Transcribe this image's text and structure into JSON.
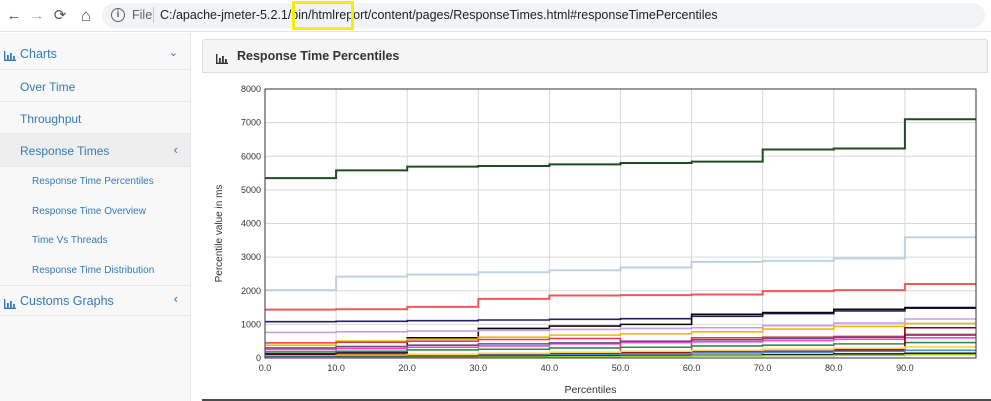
{
  "browser": {
    "back_icon": "←",
    "forward_icon": "→",
    "reload_icon": "⟳",
    "home_icon": "⌂",
    "file_label": "File",
    "url": "C:/apache-jmeter-5.2.1/bin/htmlreport/content/pages/ResponseTimes.html#responseTimePercentiles"
  },
  "sidebar": {
    "charts_label": "Charts",
    "items": [
      {
        "label": "Over Time"
      },
      {
        "label": "Throughput"
      },
      {
        "label": "Response Times"
      }
    ],
    "sub_items": [
      {
        "label": "Response Time Percentiles"
      },
      {
        "label": "Response Time Overview"
      },
      {
        "label": "Time Vs Threads"
      },
      {
        "label": "Response Time Distribution"
      }
    ],
    "custom_graphs_label": "Customs Graphs"
  },
  "panel": {
    "title": "Response Time Percentiles"
  },
  "chart_data": {
    "type": "line",
    "step": true,
    "xlabel": "Percentiles",
    "ylabel": "Percentile value in ms",
    "xlim": [
      0,
      100
    ],
    "ylim": [
      0,
      8000
    ],
    "x_ticks": [
      "0.0",
      "10.0",
      "20.0",
      "30.0",
      "40.0",
      "50.0",
      "60.0",
      "70.0",
      "80.0",
      "90.0"
    ],
    "y_ticks": [
      "0",
      "1000",
      "2000",
      "3000",
      "4000",
      "5000",
      "6000",
      "7000",
      "8000"
    ],
    "grid": true,
    "x": [
      0,
      10,
      20,
      30,
      40,
      50,
      60,
      70,
      80,
      90,
      100
    ],
    "series": [
      {
        "color": "#1e4d1e",
        "values": [
          5350,
          5580,
          5690,
          5710,
          5760,
          5800,
          5840,
          6200,
          6230,
          7100,
          7100
        ]
      },
      {
        "color": "#b7cde3",
        "values": [
          2020,
          2420,
          2480,
          2550,
          2610,
          2690,
          2860,
          2890,
          2960,
          3590,
          3590
        ]
      },
      {
        "color": "#ee5a5a",
        "values": [
          1440,
          1450,
          1520,
          1760,
          1860,
          1870,
          1890,
          1990,
          2020,
          2200,
          2200
        ]
      },
      {
        "color": "#2b1a66",
        "values": [
          1080,
          1090,
          1110,
          1130,
          1150,
          1170,
          1240,
          1320,
          1400,
          1480,
          1480
        ]
      },
      {
        "color": "#0a0a0a",
        "values": [
          120,
          150,
          600,
          880,
          950,
          1000,
          1300,
          1350,
          1450,
          1500,
          1500
        ]
      },
      {
        "color": "#c8a0e0",
        "values": [
          760,
          780,
          800,
          820,
          850,
          880,
          900,
          960,
          1040,
          1160,
          1160
        ]
      },
      {
        "color": "#f0b800",
        "values": [
          380,
          500,
          560,
          620,
          680,
          720,
          780,
          860,
          940,
          1030,
          1030
        ]
      },
      {
        "color": "#e23c3c",
        "values": [
          450,
          470,
          500,
          550,
          580,
          100,
          600,
          620,
          640,
          700,
          700
        ]
      },
      {
        "color": "#ff44cc",
        "values": [
          250,
          280,
          320,
          360,
          420,
          460,
          480,
          520,
          560,
          600,
          600
        ]
      },
      {
        "color": "#6a4a8a",
        "values": [
          300,
          340,
          380,
          420,
          450,
          500,
          540,
          580,
          620,
          680,
          680
        ]
      },
      {
        "color": "#2e8b57",
        "values": [
          180,
          200,
          240,
          260,
          300,
          320,
          360,
          380,
          420,
          460,
          460
        ]
      },
      {
        "color": "#8b0000",
        "values": [
          80,
          90,
          100,
          120,
          140,
          160,
          180,
          200,
          240,
          900,
          900
        ]
      },
      {
        "color": "#ffd24a",
        "values": [
          60,
          80,
          110,
          140,
          170,
          200,
          230,
          260,
          290,
          330,
          330
        ]
      },
      {
        "color": "#4a90d9",
        "values": [
          40,
          50,
          60,
          80,
          100,
          120,
          150,
          170,
          200,
          230,
          230
        ]
      },
      {
        "color": "#111111",
        "values": [
          20,
          30,
          40,
          50,
          60,
          70,
          80,
          100,
          120,
          140,
          140
        ]
      },
      {
        "color": "#9acd32",
        "values": [
          10,
          15,
          20,
          30,
          40,
          50,
          60,
          70,
          80,
          100,
          100
        ]
      }
    ]
  }
}
